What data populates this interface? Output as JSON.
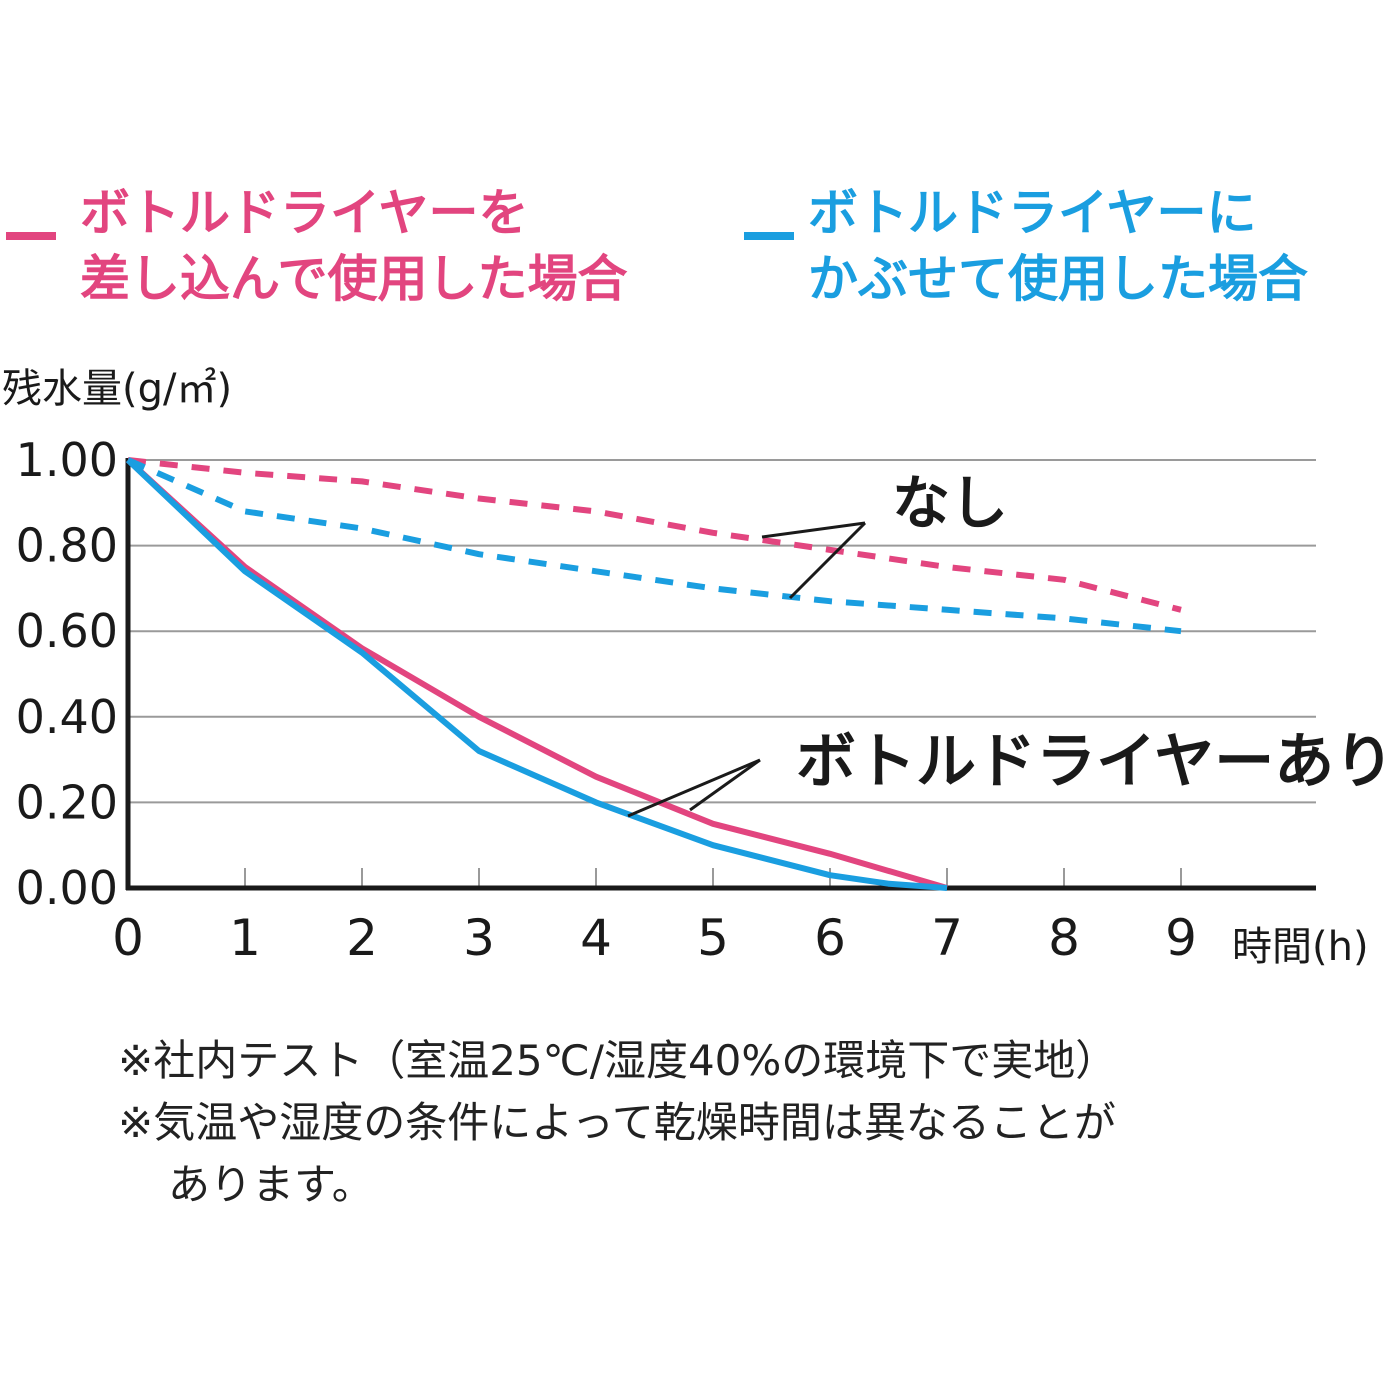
{
  "colors": {
    "pink": "#e2457f",
    "blue": "#1a9ee0",
    "axis": "#1a1a1a",
    "grid": "#9a9a9a"
  },
  "legend": [
    {
      "color": "#e2457f",
      "lines": [
        "ボトルドライヤーを",
        "差し込んで使用した場合"
      ]
    },
    {
      "color": "#1a9ee0",
      "lines": [
        "ボトルドライヤーに",
        "かぶせて使用した場合"
      ]
    }
  ],
  "chart_data": {
    "type": "line",
    "ylabel": "残水量(g/㎡)",
    "xlabel": "時間(h)",
    "xlim": [
      0,
      10
    ],
    "ylim": [
      0,
      1
    ],
    "xticks": [
      "0",
      "1",
      "2",
      "3",
      "4",
      "5",
      "6",
      "7",
      "8",
      "9"
    ],
    "yticks": [
      "1.00",
      "0.80",
      "0.60",
      "0.40",
      "0.20",
      "0.00"
    ],
    "grid": true,
    "series": [
      {
        "style": "solid",
        "color": "#e2457f",
        "x": [
          0,
          1,
          2,
          3,
          4,
          5,
          6,
          7
        ],
        "y": [
          1.0,
          0.75,
          0.56,
          0.4,
          0.26,
          0.15,
          0.08,
          0.0
        ]
      },
      {
        "style": "solid",
        "color": "#1a9ee0",
        "x": [
          0,
          1,
          2,
          3,
          4,
          5,
          6,
          6.5,
          7
        ],
        "y": [
          1.0,
          0.74,
          0.55,
          0.32,
          0.2,
          0.1,
          0.03,
          0.01,
          0.0
        ]
      },
      {
        "style": "dashed",
        "color": "#e2457f",
        "x": [
          0,
          1,
          2,
          3,
          4,
          5,
          6,
          7,
          8,
          9
        ],
        "y": [
          1.0,
          0.97,
          0.95,
          0.91,
          0.88,
          0.83,
          0.79,
          0.75,
          0.72,
          0.65
        ]
      },
      {
        "style": "dashed",
        "color": "#1a9ee0",
        "x": [
          0,
          1,
          2,
          3,
          4,
          5,
          6,
          7,
          8,
          9
        ],
        "y": [
          1.0,
          0.88,
          0.84,
          0.78,
          0.74,
          0.7,
          0.67,
          0.65,
          0.63,
          0.6
        ]
      }
    ],
    "annotations": [
      {
        "text": "なし"
      },
      {
        "text": "ボトルドライヤーあり"
      }
    ]
  },
  "notes": [
    "※社内テスト（室温25℃/湿度40%の環境下で実地）",
    "※気温や湿度の条件によって乾燥時間は異なることが",
    "あります。"
  ]
}
